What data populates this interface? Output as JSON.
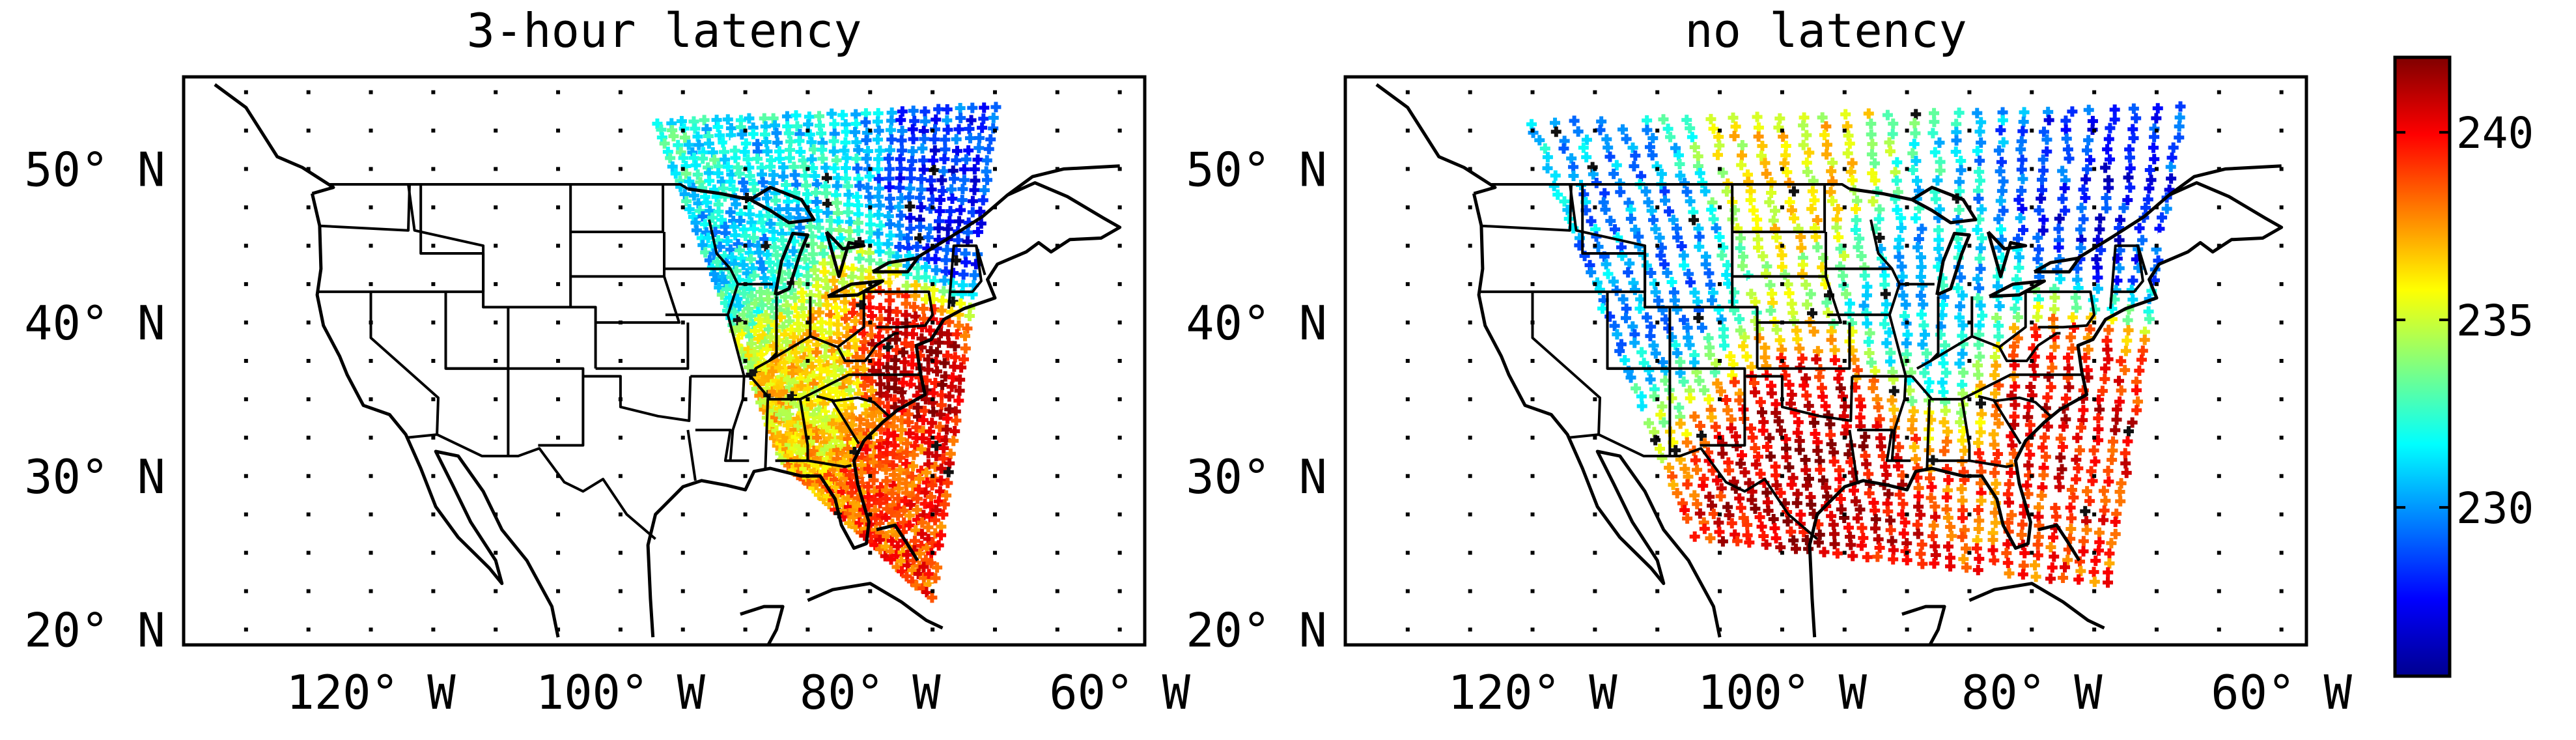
{
  "chart_data": [
    {
      "type": "map-scatter",
      "title": "3-hour latency",
      "region": "Continental United States",
      "xlim": [
        -135,
        -58
      ],
      "ylim": [
        19,
        56
      ],
      "xticks": [
        -120,
        -100,
        -80,
        -60
      ],
      "yticks": [
        20,
        30,
        40,
        50
      ],
      "xtick_labels": [
        "120° W",
        "100° W",
        "80° W",
        "60° W"
      ],
      "ytick_labels": [
        "20° N",
        "30° N",
        "40° N",
        "50° N"
      ],
      "grid": "dotted",
      "swath": {
        "description": "satellite swath coverage, eastern half only",
        "corners": [
          [
            -97,
            53
          ],
          [
            -70,
            54
          ],
          [
            -75,
            22
          ],
          [
            -87,
            31
          ]
        ],
        "value_pattern": [
          {
            "lon": -77,
            "lat": 37,
            "value": 241
          },
          {
            "lon": -78,
            "lat": 30,
            "value": 239
          },
          {
            "lon": -83,
            "lat": 35,
            "value": 236
          },
          {
            "lon": -90,
            "lat": 48,
            "value": 231
          },
          {
            "lon": -73,
            "lat": 47,
            "value": 228
          },
          {
            "lon": -95,
            "lat": 52,
            "value": 232
          }
        ]
      }
    },
    {
      "type": "map-scatter",
      "title": "no latency",
      "region": "Continental United States",
      "xlim": [
        -135,
        -58
      ],
      "ylim": [
        19,
        56
      ],
      "xticks": [
        -120,
        -100,
        -80,
        -60
      ],
      "yticks": [
        20,
        30,
        40,
        50
      ],
      "xtick_labels": [
        "120° W",
        "100° W",
        "80° W",
        "60° W"
      ],
      "ytick_labels": [
        "20° N",
        "30° N",
        "40° N",
        "50° N"
      ],
      "grid": "dotted",
      "swath": {
        "description": "satellite swath coverage, central and eastern US",
        "corners": [
          [
            -120,
            53
          ],
          [
            -68,
            54
          ],
          [
            -74,
            23
          ],
          [
            -107,
            26
          ]
        ],
        "value_pattern": [
          {
            "lon": -97,
            "lat": 31,
            "value": 241
          },
          {
            "lon": -77,
            "lat": 35,
            "value": 240
          },
          {
            "lon": -110,
            "lat": 45,
            "value": 230
          },
          {
            "lon": -88,
            "lat": 42,
            "value": 231
          },
          {
            "lon": -75,
            "lat": 47,
            "value": 228
          },
          {
            "lon": -100,
            "lat": 50,
            "value": 236
          }
        ]
      }
    }
  ],
  "colorbar": {
    "colormap": "jet",
    "vmin": 225.5,
    "vmax": 242,
    "ticks": [
      230,
      235,
      240
    ],
    "tick_labels": [
      "230",
      "235",
      "240"
    ]
  }
}
